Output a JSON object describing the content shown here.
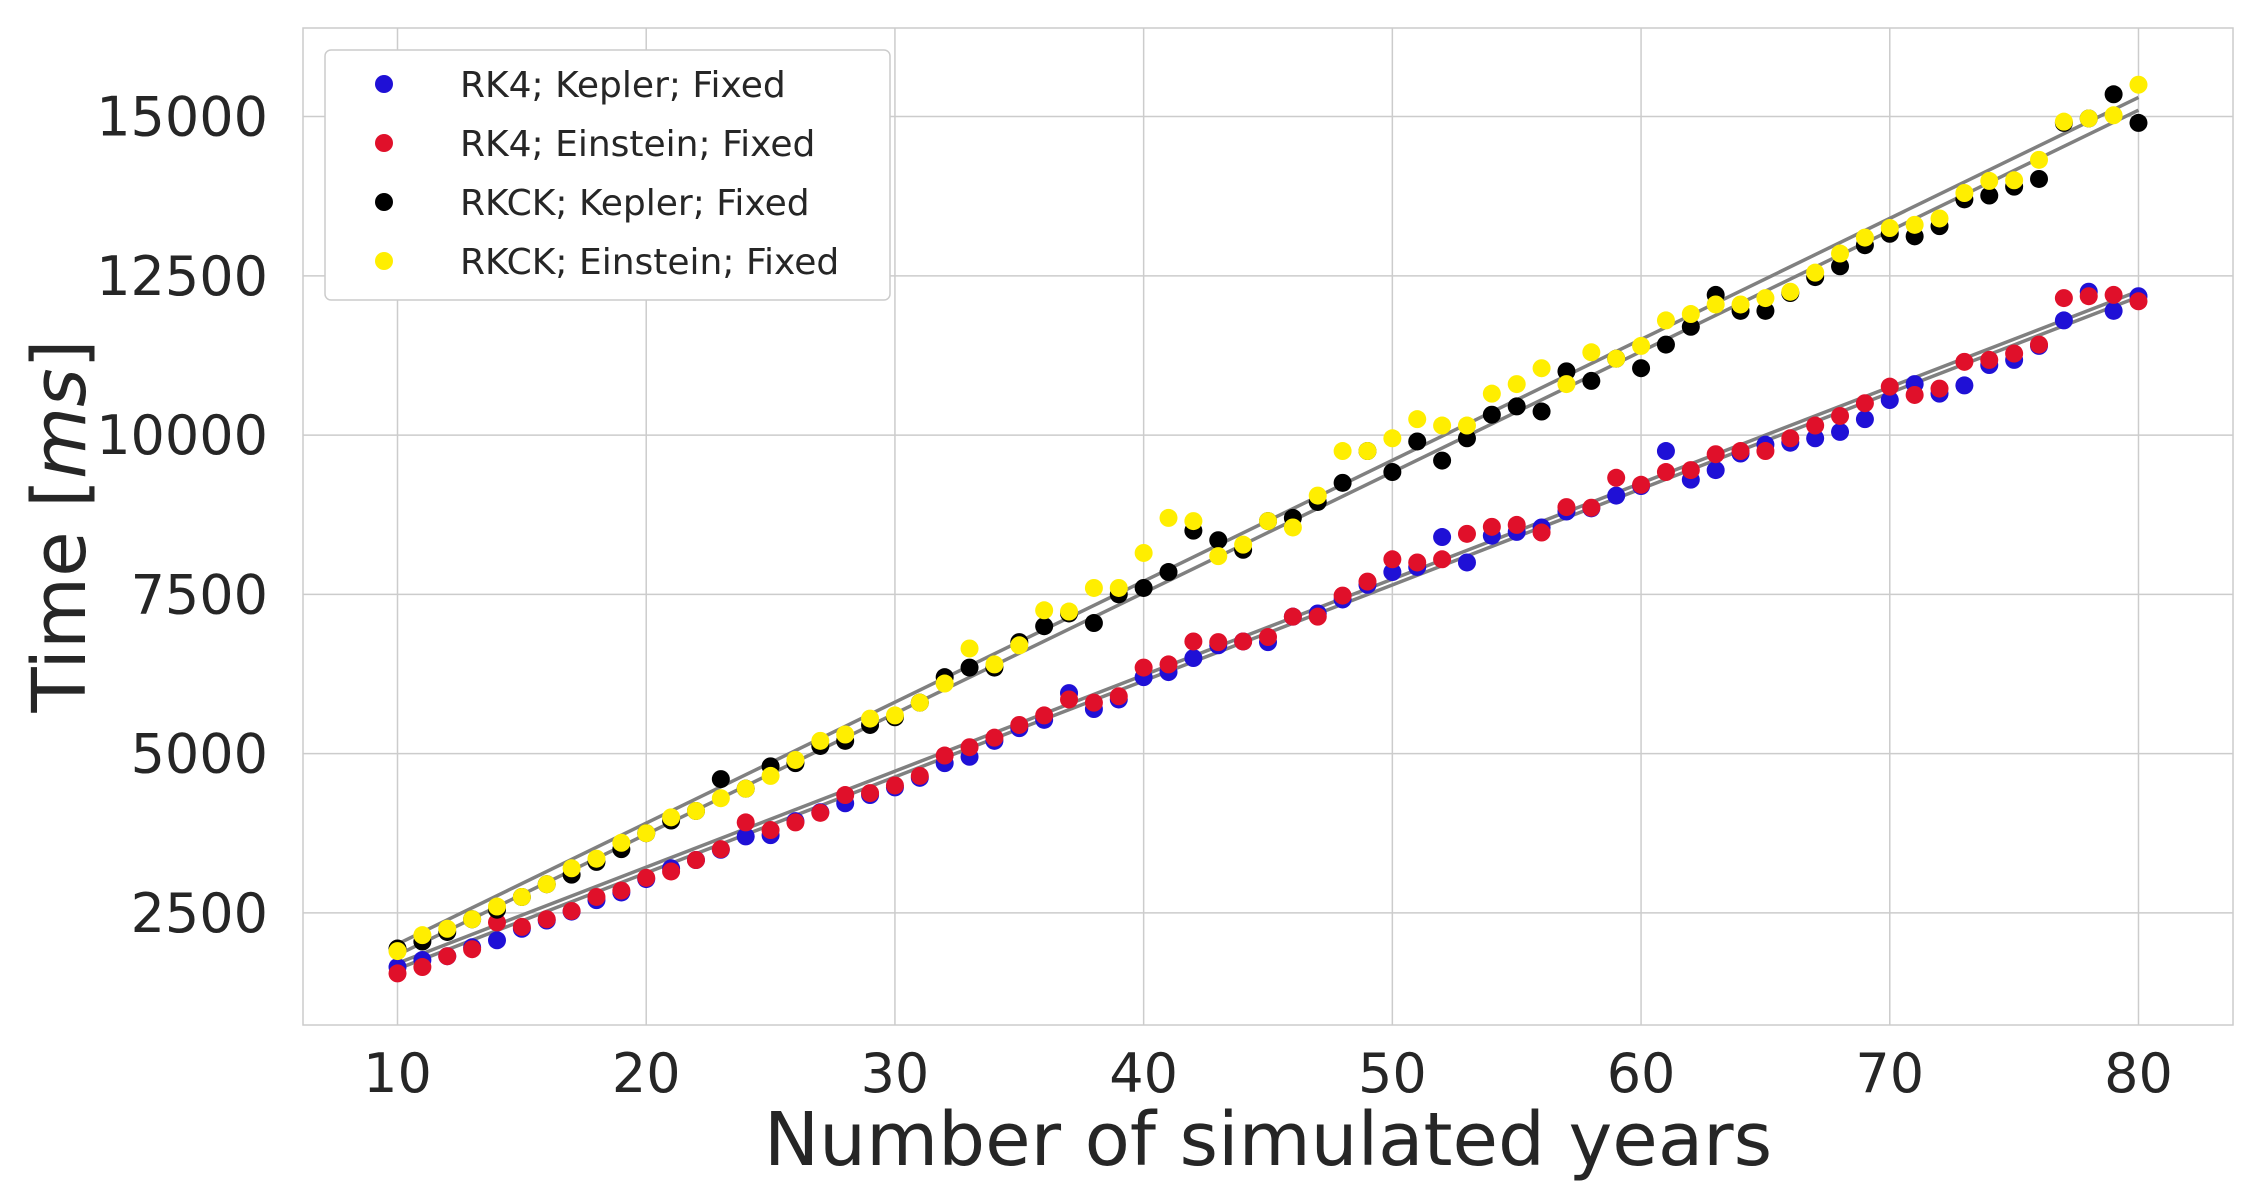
{
  "chart_data": {
    "type": "scatter",
    "xlabel": "Number of simulated years",
    "ylabel_prefix": "Time [",
    "ylabel_unit": "ms",
    "ylabel_suffix": "]",
    "xlim": [
      6.2,
      83.8
    ],
    "ylim": [
      740,
      16390
    ],
    "xticks": [
      10,
      20,
      30,
      40,
      50,
      60,
      70,
      80
    ],
    "yticks": [
      2500,
      5000,
      7500,
      10000,
      12500,
      15000
    ],
    "grid": true,
    "legend_position": "top-left",
    "x": [
      10,
      11,
      12,
      13,
      14,
      15,
      16,
      17,
      18,
      19,
      20,
      21,
      22,
      23,
      24,
      25,
      26,
      27,
      28,
      29,
      30,
      31,
      32,
      33,
      34,
      35,
      36,
      37,
      38,
      39,
      40,
      41,
      42,
      43,
      44,
      45,
      46,
      47,
      48,
      49,
      50,
      51,
      52,
      53,
      54,
      55,
      56,
      57,
      58,
      59,
      60,
      61,
      62,
      63,
      64,
      65,
      66,
      67,
      68,
      69,
      70,
      71,
      72,
      73,
      74,
      75,
      76,
      77,
      78,
      79,
      80
    ],
    "series": [
      {
        "name": "RK4; Kepler; Fixed",
        "color": "#1f10d6",
        "values": [
          1650,
          1760,
          1820,
          1960,
          2070,
          2250,
          2380,
          2520,
          2700,
          2820,
          3030,
          3200,
          3330,
          3490,
          3700,
          3720,
          3940,
          4080,
          4220,
          4350,
          4470,
          4620,
          4850,
          4950,
          5200,
          5400,
          5530,
          5950,
          5700,
          5850,
          6200,
          6280,
          6500,
          6700,
          6760,
          6750,
          7150,
          7200,
          7420,
          7650,
          7850,
          7930,
          8400,
          8000,
          8420,
          8480,
          8550,
          8800,
          8850,
          9050,
          9200,
          9750,
          9300,
          9450,
          9710,
          9850,
          9880,
          9950,
          10050,
          10250,
          10550,
          10800,
          10650,
          10780,
          11100,
          11180,
          11400,
          11800,
          12250,
          11950,
          12180
        ]
      },
      {
        "name": "RK4; Einstein; Fixed",
        "color": "#e0102a",
        "values": [
          1550,
          1650,
          1820,
          1930,
          2350,
          2280,
          2400,
          2530,
          2750,
          2850,
          3050,
          3150,
          3330,
          3500,
          3920,
          3800,
          3920,
          4070,
          4350,
          4380,
          4500,
          4650,
          4970,
          5100,
          5250,
          5450,
          5600,
          5850,
          5800,
          5900,
          6350,
          6400,
          6760,
          6750,
          6760,
          6830,
          7150,
          7150,
          7480,
          7700,
          8050,
          8000,
          8050,
          8450,
          8560,
          8590,
          8470,
          8870,
          8860,
          9330,
          9220,
          9420,
          9450,
          9700,
          9750,
          9750,
          9950,
          10150,
          10300,
          10500,
          10760,
          10630,
          10730,
          11150,
          11180,
          11280,
          11420,
          12150,
          12180,
          12200,
          12100
        ]
      },
      {
        "name": "RKCK; Kepler; Fixed",
        "color": "#000000",
        "values": [
          1940,
          2050,
          2200,
          2400,
          2550,
          2750,
          2950,
          3100,
          3300,
          3500,
          3750,
          3950,
          4100,
          4600,
          4450,
          4800,
          4850,
          5120,
          5200,
          5450,
          5570,
          5800,
          6200,
          6350,
          6350,
          6750,
          7000,
          7200,
          7050,
          7500,
          7600,
          7850,
          8500,
          8350,
          8200,
          8650,
          8700,
          8950,
          9250,
          9750,
          9420,
          9900,
          9600,
          9950,
          10320,
          10450,
          10370,
          11000,
          10850,
          11200,
          11050,
          11420,
          11700,
          12200,
          11950,
          11950,
          12230,
          12480,
          12650,
          12980,
          13160,
          13120,
          13280,
          13700,
          13760,
          13900,
          14020,
          14900,
          14970,
          15350,
          14900
        ]
      },
      {
        "name": "RKCK; Einstein; Fixed",
        "color": "#ffee00",
        "values": [
          1900,
          2150,
          2250,
          2400,
          2600,
          2750,
          2950,
          3200,
          3350,
          3600,
          3750,
          4000,
          4100,
          4300,
          4450,
          4650,
          4900,
          5200,
          5300,
          5550,
          5600,
          5800,
          6100,
          6650,
          6400,
          6700,
          7250,
          7230,
          7600,
          7600,
          8150,
          8700,
          8650,
          8100,
          8280,
          8650,
          8550,
          9050,
          9750,
          9750,
          9950,
          10250,
          10150,
          10150,
          10650,
          10800,
          11050,
          10800,
          11300,
          11200,
          11400,
          11800,
          11900,
          12050,
          12050,
          12150,
          12250,
          12550,
          12850,
          13100,
          13250,
          13300,
          13400,
          13800,
          13990,
          14000,
          14320,
          14920,
          14970,
          15020,
          15500
        ]
      }
    ],
    "fit_lines": [
      {
        "color": "#808080",
        "x": [
          10,
          80
        ],
        "y": [
          1620,
          12170
        ]
      },
      {
        "color": "#808080",
        "x": [
          10,
          80
        ],
        "y": [
          1710,
          12260
        ]
      },
      {
        "color": "#808080",
        "x": [
          10,
          80
        ],
        "y": [
          1840,
          15100
        ]
      },
      {
        "color": "#808080",
        "x": [
          10,
          80
        ],
        "y": [
          2010,
          15300
        ]
      }
    ]
  }
}
